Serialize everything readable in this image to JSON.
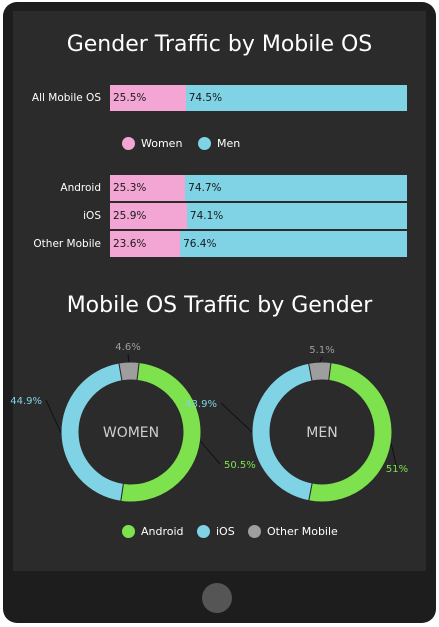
{
  "titles": {
    "bars": "Gender Traffic by Mobile OS",
    "donuts": "Mobile OS Traffic by Gender"
  },
  "colors": {
    "women": "#f3a6d3",
    "men": "#7fd3e5",
    "android": "#7de24e",
    "ios": "#7fd3e5",
    "other": "#9e9e9e"
  },
  "legend_gender": [
    "Women",
    "Men"
  ],
  "legend_os": [
    "Android",
    "iOS",
    "Other Mobile"
  ],
  "chart_data": [
    {
      "type": "bar",
      "title": "Gender Traffic by Mobile OS",
      "categories": [
        "All Mobile OS",
        "Android",
        "iOS",
        "Other Mobile"
      ],
      "series": [
        {
          "name": "Women",
          "values": [
            25.5,
            25.3,
            25.9,
            23.6
          ],
          "labels": [
            "25.5%",
            "25.3%",
            "25.9%",
            "23.6%"
          ]
        },
        {
          "name": "Men",
          "values": [
            74.5,
            74.7,
            74.1,
            76.4
          ],
          "labels": [
            "74.5%",
            "74.7%",
            "74.1%",
            "76.4%"
          ]
        }
      ],
      "stacked": true
    },
    {
      "type": "pie",
      "title": "Mobile OS Traffic by Gender",
      "center_label": "WOMEN",
      "slices": [
        {
          "name": "Android",
          "value": 50.5,
          "label": "50.5%"
        },
        {
          "name": "iOS",
          "value": 44.9,
          "label": "44.9%"
        },
        {
          "name": "Other Mobile",
          "value": 4.6,
          "label": "4.6%"
        }
      ]
    },
    {
      "type": "pie",
      "title": "Mobile OS Traffic by Gender",
      "center_label": "MEN",
      "slices": [
        {
          "name": "Android",
          "value": 51,
          "label": "51%"
        },
        {
          "name": "iOS",
          "value": 43.9,
          "label": "43.9%"
        },
        {
          "name": "Other Mobile",
          "value": 5.1,
          "label": "5.1%"
        }
      ]
    }
  ]
}
